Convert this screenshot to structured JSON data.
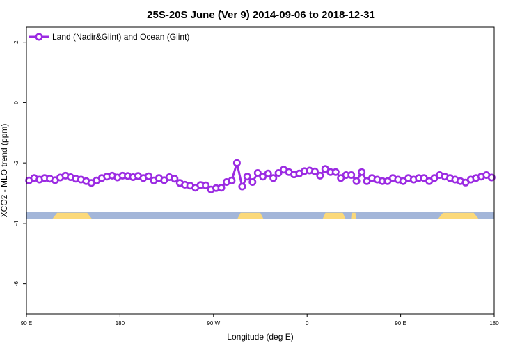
{
  "chart_data": {
    "type": "line",
    "title": "25S-20S June (Ver 9)   2014-09-06 to 2018-12-31",
    "xlabel": "Longitude (deg E)",
    "ylabel": "XCO2 - MLO trend (ppm)",
    "xlim": [
      90,
      540
    ],
    "ylim": [
      -7,
      2.5
    ],
    "x_ticks": [
      {
        "value": 90,
        "label": "90 E"
      },
      {
        "value": 180,
        "label": "180"
      },
      {
        "value": 270,
        "label": "90 W"
      },
      {
        "value": 360,
        "label": "0"
      },
      {
        "value": 450,
        "label": "90 E"
      },
      {
        "value": 540,
        "label": "180"
      }
    ],
    "y_ticks": [
      {
        "value": 2,
        "label": "2"
      },
      {
        "value": 0,
        "label": "0"
      },
      {
        "value": -2,
        "label": "-2"
      },
      {
        "value": -4,
        "label": "-4"
      },
      {
        "value": -6,
        "label": "-6"
      }
    ],
    "grid": false,
    "legend_position": "top-left",
    "series": [
      {
        "name": "Land (Nadir&Glint) and Ocean (Glint)",
        "color": "#9b2be2",
        "x": [
          92.5,
          97.5,
          102.5,
          107.5,
          112.5,
          117.5,
          122.5,
          127.5,
          132.5,
          137.5,
          142.5,
          147.5,
          152.5,
          157.5,
          162.5,
          167.5,
          172.5,
          177.5,
          182.5,
          187.5,
          192.5,
          197.5,
          202.5,
          207.5,
          212.5,
          217.5,
          222.5,
          227.5,
          232.5,
          237.5,
          242.5,
          247.5,
          252.5,
          257.5,
          262.5,
          267.5,
          272.5,
          277.5,
          282.5,
          287.5,
          292.5,
          297.5,
          302.5,
          307.5,
          312.5,
          317.5,
          322.5,
          327.5,
          332.5,
          337.5,
          342.5,
          347.5,
          352.5,
          357.5,
          362.5,
          367.5,
          372.5,
          377.5,
          382.5,
          387.5,
          392.5,
          397.5,
          402.5,
          407.5,
          412.5,
          417.5,
          422.5,
          427.5,
          432.5,
          437.5,
          442.5,
          447.5,
          452.5,
          457.5,
          462.5,
          467.5,
          472.5,
          477.5,
          482.5,
          487.5,
          492.5,
          497.5,
          502.5,
          507.5,
          512.5,
          517.5,
          522.5,
          527.5,
          532.5,
          537.5
        ],
        "values": [
          -2.58,
          -2.5,
          -2.55,
          -2.5,
          -2.52,
          -2.57,
          -2.48,
          -2.42,
          -2.47,
          -2.52,
          -2.55,
          -2.6,
          -2.66,
          -2.58,
          -2.5,
          -2.45,
          -2.42,
          -2.48,
          -2.42,
          -2.43,
          -2.47,
          -2.43,
          -2.5,
          -2.44,
          -2.58,
          -2.5,
          -2.57,
          -2.47,
          -2.52,
          -2.66,
          -2.72,
          -2.75,
          -2.82,
          -2.73,
          -2.74,
          -2.88,
          -2.83,
          -2.82,
          -2.63,
          -2.58,
          -2.0,
          -2.78,
          -2.45,
          -2.63,
          -2.33,
          -2.45,
          -2.35,
          -2.5,
          -2.33,
          -2.22,
          -2.3,
          -2.38,
          -2.35,
          -2.27,
          -2.25,
          -2.28,
          -2.42,
          -2.2,
          -2.3,
          -2.3,
          -2.5,
          -2.4,
          -2.4,
          -2.6,
          -2.3,
          -2.6,
          -2.5,
          -2.55,
          -2.6,
          -2.6,
          -2.5,
          -2.55,
          -2.6,
          -2.5,
          -2.55,
          -2.5,
          -2.5,
          -2.6,
          -2.5,
          -2.4,
          -2.45,
          -2.5,
          -2.55,
          -2.6,
          -2.65,
          -2.55,
          -2.5,
          -2.45,
          -2.4,
          -2.48
        ]
      }
    ],
    "land_ocean_strip": {
      "y_range": [
        -3.63,
        -3.85
      ],
      "ocean_color": "#a3b6d9",
      "land_color": "#fbd97a",
      "land_segments": [
        [
          115,
          153
        ],
        [
          293,
          318
        ],
        [
          375,
          397
        ],
        [
          403,
          407
        ],
        [
          486,
          525
        ]
      ]
    }
  }
}
